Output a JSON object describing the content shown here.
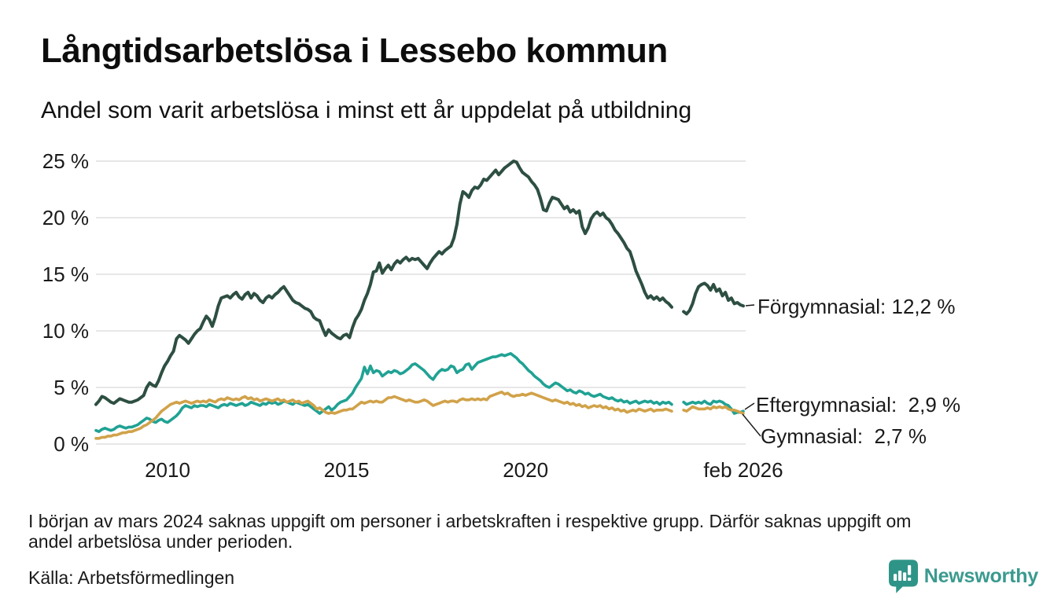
{
  "header": {
    "title": "Långtidsarbetslösa i Lessebo kommun",
    "subtitle": "Andel som varit arbetslösa i minst ett år uppdelat på utbildning"
  },
  "chart_data": {
    "type": "line",
    "title": "Långtidsarbetslösa i Lessebo kommun",
    "subtitle": "Andel som varit arbetslösa i minst ett år uppdelat på utbildning",
    "unit": "%",
    "grid": true,
    "legend_position": "end-of-line-labels",
    "x_axis": {
      "start": "2008-01",
      "end": "2026-02",
      "frequency": "monthly",
      "ticks": [
        {
          "date": "2010-01",
          "label": "2010"
        },
        {
          "date": "2015-01",
          "label": "2015"
        },
        {
          "date": "2020-01",
          "label": "2020"
        },
        {
          "date": "2026-02",
          "label": "feb 2026"
        }
      ]
    },
    "y_axis": {
      "min": 0,
      "max": 25,
      "ticks": [
        {
          "value": 25,
          "label": "25 %"
        },
        {
          "value": 20,
          "label": "20 %"
        },
        {
          "value": 15,
          "label": "15 %"
        },
        {
          "value": 10,
          "label": "10 %"
        },
        {
          "value": 5,
          "label": "5 %"
        },
        {
          "value": 0,
          "label": "0 %"
        }
      ]
    },
    "data_gap": "2024-03 till 2024-05 (uppgift saknas)",
    "series": [
      {
        "id": "forgymnasial",
        "name": "Förgymnasial",
        "color": "#2d4f42",
        "stroke_width": 4,
        "end_value": "12,2 %",
        "end_label": "Förgymnasial: 12,2 %",
        "values": [
          3.5,
          3.8,
          4.2,
          4.1,
          3.9,
          3.7,
          3.6,
          3.8,
          4.0,
          3.9,
          3.8,
          3.7,
          3.7,
          3.8,
          3.9,
          4.1,
          4.3,
          5.0,
          5.4,
          5.2,
          5.1,
          5.6,
          6.3,
          6.9,
          7.3,
          7.8,
          8.2,
          9.3,
          9.6,
          9.4,
          9.2,
          8.9,
          9.3,
          9.7,
          10.0,
          10.2,
          10.8,
          11.3,
          11.0,
          10.4,
          11.2,
          12.2,
          12.9,
          13.0,
          13.1,
          12.9,
          13.2,
          13.4,
          13.0,
          12.8,
          13.2,
          13.4,
          12.9,
          13.3,
          13.1,
          12.7,
          12.5,
          12.9,
          13.1,
          12.9,
          13.2,
          13.4,
          13.7,
          13.9,
          13.5,
          13.1,
          12.7,
          12.5,
          12.4,
          12.2,
          12.0,
          11.9,
          11.7,
          11.2,
          11.0,
          10.9,
          10.2,
          9.6,
          10.1,
          9.8,
          9.6,
          9.4,
          9.3,
          9.6,
          9.7,
          9.4,
          10.3,
          11.0,
          11.4,
          11.9,
          12.7,
          13.3,
          14.1,
          15.2,
          15.3,
          16.0,
          15.1,
          15.5,
          15.8,
          15.4,
          15.9,
          16.2,
          16.0,
          16.3,
          16.5,
          16.2,
          16.4,
          16.3,
          16.4,
          16.1,
          15.8,
          15.5,
          16.0,
          16.4,
          16.7,
          17.0,
          16.8,
          17.1,
          17.3,
          17.5,
          18.2,
          19.4,
          21.2,
          22.3,
          22.1,
          21.8,
          22.4,
          22.7,
          22.6,
          22.9,
          23.4,
          23.3,
          23.6,
          23.9,
          24.2,
          23.8,
          24.1,
          24.4,
          24.6,
          24.8,
          25.0,
          24.9,
          24.4,
          24.0,
          23.8,
          23.6,
          23.2,
          22.9,
          22.5,
          21.7,
          20.7,
          20.6,
          21.3,
          21.8,
          21.7,
          21.6,
          21.2,
          20.8,
          21.0,
          20.5,
          20.7,
          20.4,
          20.6,
          19.2,
          18.6,
          19.1,
          19.9,
          20.3,
          20.5,
          20.2,
          20.4,
          20.0,
          19.8,
          19.4,
          18.9,
          18.6,
          18.2,
          17.8,
          17.3,
          17.0,
          16.2,
          15.3,
          14.7,
          14.1,
          13.4,
          12.9,
          13.1,
          12.8,
          13.0,
          12.7,
          12.9,
          12.6,
          12.4,
          12.1,
          null,
          null,
          null,
          11.7,
          11.5,
          11.8,
          12.4,
          13.3,
          13.9,
          14.1,
          14.2,
          14.0,
          13.6,
          14.1,
          13.5,
          13.7,
          13.1,
          13.4,
          12.7,
          12.9,
          12.4,
          12.5,
          12.3,
          12.2
        ]
      },
      {
        "id": "eftergymnasial",
        "name": "Eftergymnasial",
        "color": "#20a294",
        "stroke_width": 3.6,
        "end_value": "2,9 %",
        "end_label": "Eftergymnasial:  2,9 %",
        "values": [
          1.2,
          1.1,
          1.3,
          1.4,
          1.3,
          1.2,
          1.3,
          1.5,
          1.6,
          1.5,
          1.4,
          1.5,
          1.5,
          1.6,
          1.7,
          1.9,
          2.1,
          2.3,
          2.2,
          2.0,
          1.9,
          2.1,
          2.2,
          2.0,
          1.9,
          2.1,
          2.3,
          2.5,
          2.8,
          3.2,
          3.4,
          3.3,
          3.2,
          3.4,
          3.3,
          3.4,
          3.4,
          3.3,
          3.5,
          3.4,
          3.3,
          3.2,
          3.4,
          3.5,
          3.4,
          3.6,
          3.5,
          3.4,
          3.5,
          3.6,
          3.4,
          3.5,
          3.7,
          3.6,
          3.5,
          3.4,
          3.6,
          3.5,
          3.7,
          3.6,
          3.7,
          3.5,
          3.6,
          3.8,
          3.7,
          3.6,
          3.5,
          3.7,
          3.6,
          3.5,
          3.4,
          3.5,
          3.3,
          3.1,
          2.9,
          2.7,
          2.9,
          3.1,
          3.3,
          3.0,
          3.2,
          3.5,
          3.7,
          3.8,
          3.9,
          4.2,
          4.5,
          5.0,
          5.4,
          5.8,
          6.8,
          6.2,
          6.9,
          6.3,
          6.5,
          6.4,
          6.0,
          6.2,
          6.4,
          6.3,
          6.5,
          6.4,
          6.2,
          6.3,
          6.5,
          6.7,
          7.0,
          7.1,
          6.9,
          6.7,
          6.5,
          6.2,
          5.9,
          5.7,
          6.1,
          6.4,
          6.6,
          6.5,
          6.6,
          6.9,
          6.8,
          6.3,
          6.5,
          6.6,
          7.0,
          7.1,
          6.6,
          6.9,
          7.2,
          7.3,
          7.4,
          7.5,
          7.6,
          7.7,
          7.7,
          7.8,
          7.9,
          7.8,
          7.9,
          8.0,
          7.8,
          7.6,
          7.3,
          7.1,
          6.8,
          6.5,
          6.3,
          6.0,
          5.8,
          5.6,
          5.3,
          5.1,
          5.0,
          5.2,
          5.4,
          5.3,
          5.1,
          4.9,
          4.7,
          4.8,
          4.6,
          4.5,
          4.7,
          4.6,
          4.4,
          4.5,
          4.3,
          4.2,
          4.3,
          4.4,
          4.2,
          4.1,
          4.0,
          4.1,
          3.9,
          3.8,
          3.9,
          3.7,
          3.8,
          3.6,
          3.7,
          3.8,
          3.6,
          3.7,
          3.8,
          3.7,
          3.8,
          3.6,
          3.7,
          3.5,
          3.7,
          3.6,
          3.7,
          3.5,
          null,
          null,
          null,
          3.7,
          3.5,
          3.6,
          3.7,
          3.6,
          3.7,
          3.6,
          3.8,
          3.6,
          3.5,
          3.8,
          3.7,
          3.8,
          3.7,
          3.5,
          3.4,
          3.1,
          2.7,
          2.8,
          2.8,
          2.9
        ]
      },
      {
        "id": "gymnasial",
        "name": "Gymnasial",
        "color": "#d1a24a",
        "stroke_width": 3.6,
        "end_value": "2,7 %",
        "end_label": "Gymnasial:  2,7 %",
        "values": [
          0.5,
          0.5,
          0.6,
          0.6,
          0.7,
          0.7,
          0.8,
          0.8,
          0.9,
          1.0,
          1.0,
          1.1,
          1.1,
          1.2,
          1.3,
          1.4,
          1.6,
          1.7,
          1.9,
          2.1,
          2.3,
          2.6,
          2.9,
          3.1,
          3.3,
          3.5,
          3.6,
          3.7,
          3.6,
          3.7,
          3.8,
          3.7,
          3.6,
          3.7,
          3.8,
          3.7,
          3.8,
          3.7,
          3.9,
          3.8,
          3.7,
          3.9,
          4.0,
          3.9,
          4.1,
          4.0,
          3.9,
          4.0,
          3.9,
          4.1,
          4.2,
          4.0,
          4.1,
          3.9,
          4.0,
          3.8,
          3.9,
          4.0,
          3.9,
          3.8,
          3.9,
          4.0,
          3.8,
          3.9,
          3.7,
          3.8,
          3.9,
          3.7,
          3.8,
          3.6,
          3.7,
          3.8,
          3.6,
          3.4,
          3.1,
          3.2,
          3.0,
          2.8,
          2.7,
          2.8,
          2.7,
          2.8,
          2.9,
          3.0,
          3.0,
          3.1,
          3.1,
          3.3,
          3.5,
          3.7,
          3.6,
          3.7,
          3.8,
          3.7,
          3.8,
          3.7,
          3.7,
          3.9,
          4.1,
          4.1,
          4.2,
          4.1,
          4.0,
          3.9,
          3.8,
          3.9,
          3.8,
          3.7,
          3.7,
          3.8,
          3.9,
          3.8,
          3.6,
          3.4,
          3.5,
          3.6,
          3.7,
          3.8,
          3.7,
          3.8,
          3.8,
          3.7,
          3.9,
          4.0,
          3.9,
          3.9,
          4.0,
          3.9,
          4.0,
          3.9,
          4.0,
          3.9,
          4.2,
          4.3,
          4.4,
          4.5,
          4.6,
          4.4,
          4.5,
          4.3,
          4.2,
          4.3,
          4.3,
          4.4,
          4.3,
          4.4,
          4.5,
          4.4,
          4.3,
          4.2,
          4.1,
          4.0,
          3.9,
          3.8,
          3.9,
          3.8,
          3.7,
          3.6,
          3.7,
          3.5,
          3.6,
          3.4,
          3.5,
          3.3,
          3.4,
          3.2,
          3.3,
          3.4,
          3.3,
          3.4,
          3.2,
          3.3,
          3.1,
          3.2,
          3.0,
          3.1,
          2.9,
          3.0,
          2.8,
          2.9,
          3.0,
          2.9,
          3.1,
          3.0,
          2.9,
          3.0,
          3.1,
          2.9,
          3.0,
          3.0,
          3.0,
          3.1,
          3.0,
          2.9,
          null,
          null,
          null,
          3.0,
          2.9,
          3.1,
          3.3,
          3.2,
          3.1,
          3.1,
          3.1,
          3.2,
          3.1,
          3.3,
          3.2,
          3.3,
          3.2,
          3.3,
          3.1,
          3.0,
          3.0,
          2.9,
          2.8,
          2.7
        ]
      }
    ]
  },
  "footnote": {
    "lines": [
      "I början av mars 2024 saknas uppgift om personer i arbetskraften i respektive grupp. Därför saknas uppgift om",
      "andel arbetslösa under perioden."
    ]
  },
  "source": "Källa: Arbetsförmedlingen",
  "logo": {
    "text": "Newsworthy",
    "text_color": "#3a9a8e",
    "icon_color": "#2f9488"
  },
  "colors": {
    "background": "#ffffff",
    "gridline": "#e7e7e7",
    "text": "#1a1a1a",
    "connector": "#1a1a1a"
  }
}
